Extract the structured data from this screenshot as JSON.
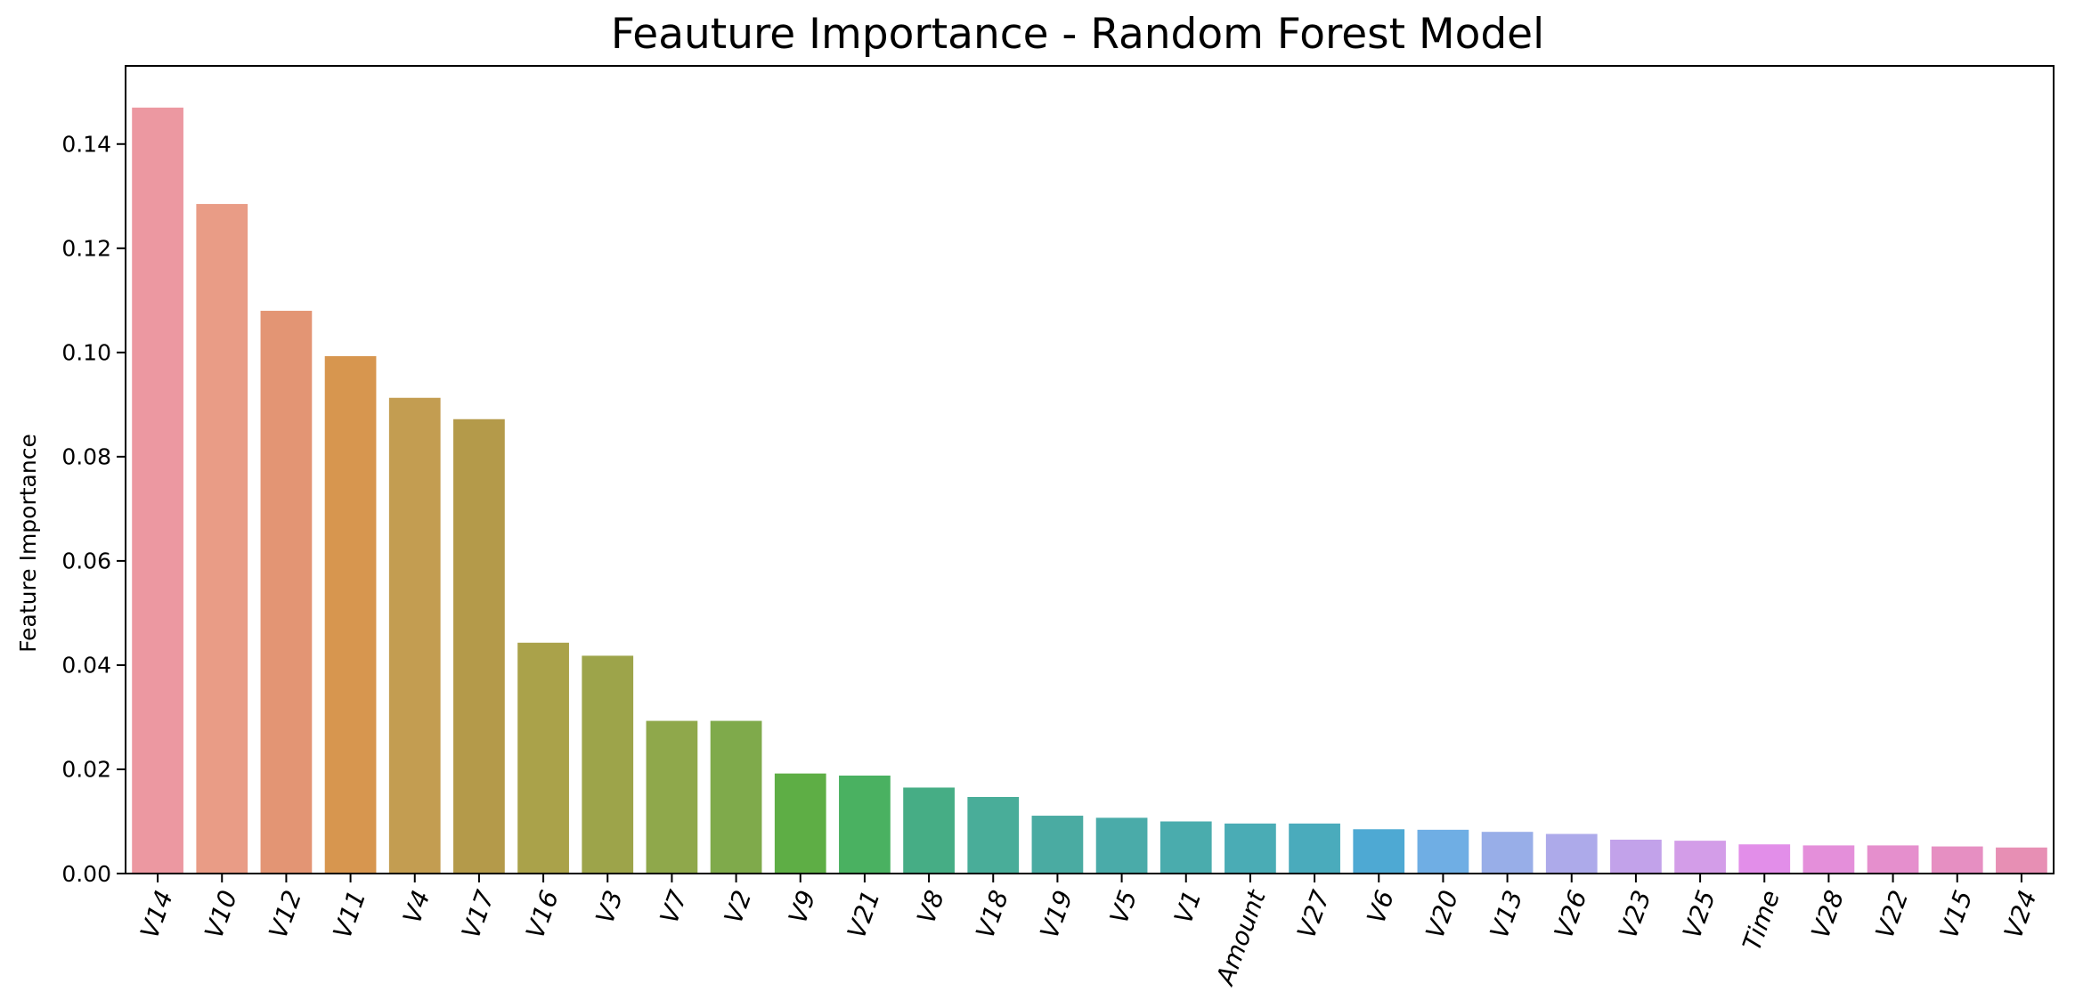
{
  "chart_data": {
    "type": "bar",
    "title": "Feauture Importance - Random Forest Model",
    "xlabel": "",
    "ylabel": "Feature Importance",
    "ylim": [
      0,
      0.155
    ],
    "yticks": [
      "0.00",
      "0.02",
      "0.04",
      "0.06",
      "0.08",
      "0.10",
      "0.12",
      "0.14"
    ],
    "grid": false,
    "legend": "none",
    "categories": [
      "V14",
      "V10",
      "V12",
      "V11",
      "V4",
      "V17",
      "V16",
      "V3",
      "V7",
      "V2",
      "V9",
      "V21",
      "V8",
      "V18",
      "V19",
      "V5",
      "V1",
      "Amount",
      "V27",
      "V6",
      "V20",
      "V13",
      "V26",
      "V23",
      "V25",
      "Time",
      "V28",
      "V22",
      "V15",
      "V24"
    ],
    "values": [
      0.147,
      0.1285,
      0.108,
      0.0993,
      0.0913,
      0.0872,
      0.0443,
      0.0418,
      0.0293,
      0.0293,
      0.0192,
      0.0188,
      0.0165,
      0.0147,
      0.0111,
      0.0107,
      0.01,
      0.0096,
      0.0096,
      0.0085,
      0.0084,
      0.008,
      0.0076,
      0.0065,
      0.0063,
      0.0056,
      0.0054,
      0.0054,
      0.0052,
      0.005
    ],
    "colors": [
      "#ec98a1",
      "#e99c86",
      "#e39574",
      "#d7964f",
      "#c39d51",
      "#b49a4a",
      "#aaa24a",
      "#9da44a",
      "#8fa84b",
      "#7faa4b",
      "#5eae45",
      "#4ab161",
      "#46ad85",
      "#49ad99",
      "#4aaba2",
      "#4aaba9",
      "#4aacad",
      "#4aacb5",
      "#4aabbc",
      "#4ea9d3",
      "#6faee4",
      "#98aee8",
      "#adaaea",
      "#c2a2ea",
      "#d39de8",
      "#e28ee9",
      "#e48fda",
      "#e58fcd",
      "#e68fc2",
      "#e78fb4"
    ]
  }
}
